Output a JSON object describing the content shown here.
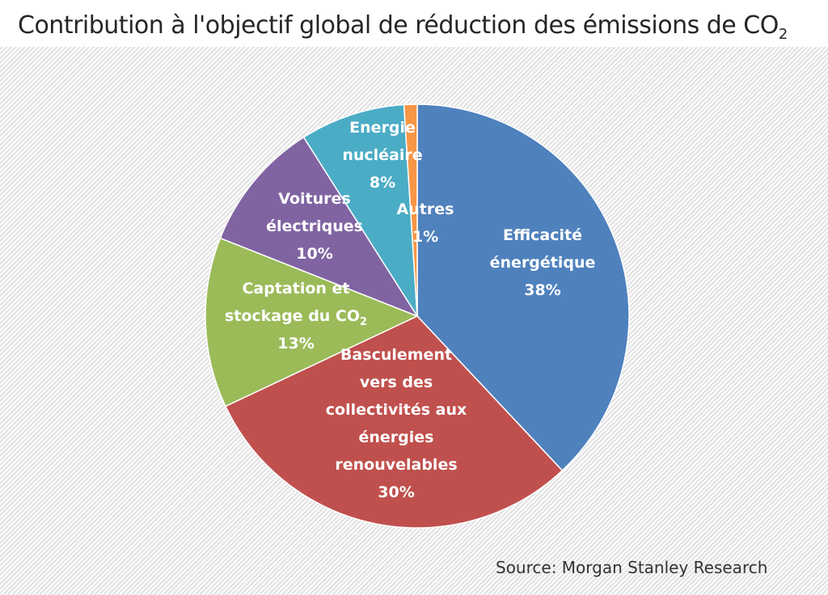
{
  "chart_data": {
    "type": "pie",
    "title": "Contribution à l'objectif global de réduction des émissions de CO",
    "title_subscript": "2",
    "slices": [
      {
        "lines": [
          "Efficacité",
          "énergétique"
        ],
        "percent_label": "38%",
        "value": 38,
        "color": "#4f81bd"
      },
      {
        "lines": [
          "Basculement",
          "vers des",
          "collectivités aux",
          "énergies",
          "renouvelables"
        ],
        "percent_label": "30%",
        "value": 30,
        "color": "#c0504d"
      },
      {
        "lines": [
          "Captation et",
          "stockage du CO"
        ],
        "subscript": "2",
        "percent_label": "13%",
        "value": 13,
        "color": "#9bbb59"
      },
      {
        "lines": [
          "Voitures",
          "électriques"
        ],
        "percent_label": "10%",
        "value": 10,
        "color": "#8064a2"
      },
      {
        "lines": [
          "Energie",
          "nucléaire"
        ],
        "percent_label": "8%",
        "value": 8,
        "color": "#4bacc6"
      },
      {
        "lines": [
          "Autres"
        ],
        "percent_label": "1%",
        "value": 1,
        "color": "#f79646"
      }
    ],
    "source": "Source: Morgan Stanley Research"
  }
}
